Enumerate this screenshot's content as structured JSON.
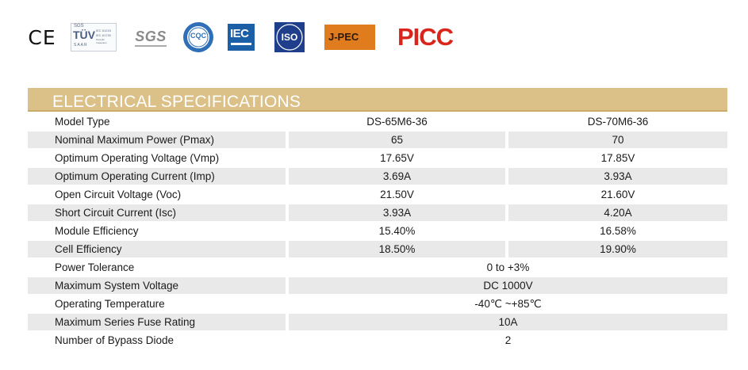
{
  "certifications": [
    {
      "name": "CE",
      "text": "CE"
    },
    {
      "name": "TUV",
      "text_top": "SGS",
      "text_main": "TÜV",
      "text_bottom": "SAAR",
      "side_lines": [
        "IEC 61215",
        "IEC 61730",
        "Periodic Inspection"
      ]
    },
    {
      "name": "SGS",
      "text": "SGS"
    },
    {
      "name": "CQC",
      "text": "CQC"
    },
    {
      "name": "IEC",
      "text": "IEC"
    },
    {
      "name": "ISO",
      "text": "ISO"
    },
    {
      "name": "J-PEC",
      "text": "J-PEC"
    },
    {
      "name": "PICC",
      "text": "PICC"
    }
  ],
  "colors": {
    "header_bg": "#dbc088",
    "row_shade": "#e9e9e9",
    "iec_blue": "#1b5fa6",
    "iso_blue": "#1f3f8c",
    "jpec_orange": "#e07b1e",
    "picc_red": "#d9261c"
  },
  "section_title": "ELECTRICAL SPECIFICATIONS",
  "table": {
    "header": {
      "label": "Model Type",
      "model_1": "DS-65M6-36",
      "model_2": "DS-70M6-36"
    },
    "rows_split": [
      {
        "label": "Nominal Maximum Power (Pmax)",
        "v1": "65",
        "v2": "70"
      },
      {
        "label": "Optimum Operating Voltage (Vmp)",
        "v1": "17.65V",
        "v2": "17.85V"
      },
      {
        "label": "Optimum Operating Current (Imp)",
        "v1": "3.69A",
        "v2": "3.93A"
      },
      {
        "label": "Open Circuit Voltage (Voc)",
        "v1": "21.50V",
        "v2": "21.60V"
      },
      {
        "label": "Short Circuit Current (Isc)",
        "v1": "3.93A",
        "v2": "4.20A"
      },
      {
        "label": "Module Efficiency",
        "v1": "15.40%",
        "v2": "16.58%"
      },
      {
        "label": "Cell Efficiency",
        "v1": "18.50%",
        "v2": "19.90%"
      }
    ],
    "rows_shared": [
      {
        "label": "Power Tolerance",
        "value": "0 to +3%"
      },
      {
        "label": "Maximum System Voltage",
        "value": "DC 1000V"
      },
      {
        "label": "Operating Temperature",
        "value": "-40℃ ~+85℃"
      },
      {
        "label": "Maximum Series Fuse Rating",
        "value": "10A"
      },
      {
        "label": "Number of Bypass Diode",
        "value": "2"
      }
    ]
  }
}
